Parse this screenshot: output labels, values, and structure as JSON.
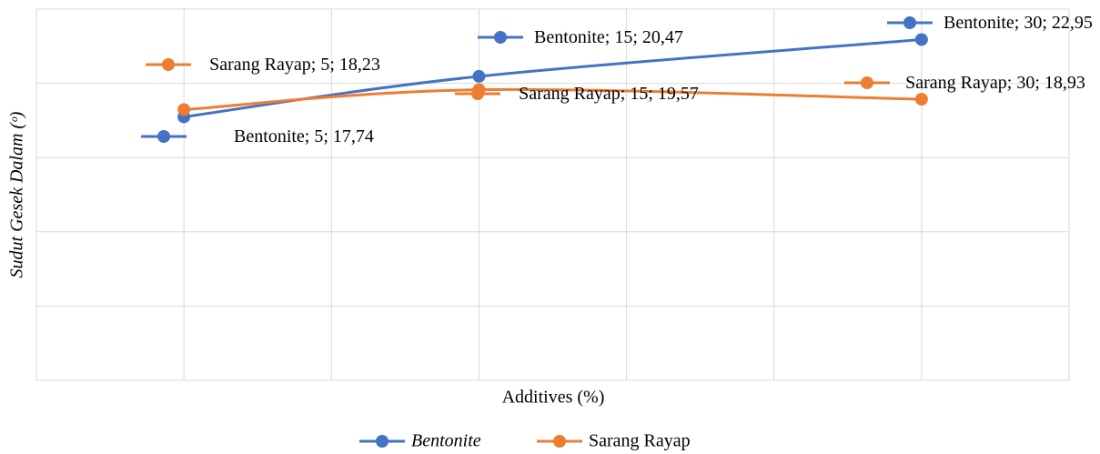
{
  "chart_data": {
    "type": "line",
    "x_label": "Additives (%)",
    "y_label": "Sudut Gesek Dalam (ᵒ)",
    "x": [
      5,
      15,
      30
    ],
    "xlim": [
      0,
      35
    ],
    "xticks": [
      0,
      5,
      10,
      15,
      20,
      25,
      30,
      35
    ],
    "ylim": [
      0,
      25
    ],
    "yticks": [
      0,
      5,
      10,
      15,
      20,
      25
    ],
    "grid": true,
    "smooth": true,
    "legend": "bottom",
    "series": [
      {
        "name": "Bentonite",
        "color": "#4472c4",
        "values": [
          17.74,
          20.47,
          22.95
        ],
        "value_labels": [
          "Bentonite; 5; 17,74",
          "Bentonite; 15; 20,47",
          "Bentonite; 30; 22,95"
        ]
      },
      {
        "name": "Sarang Rayap",
        "color": "#ed7d31",
        "values": [
          18.23,
          19.57,
          18.93
        ],
        "value_labels": [
          "Sarang Rayap; 5; 18,23",
          "Sarang Rayap; 15; 19,57",
          "Sarang Rayap; 30; 18,93"
        ]
      }
    ]
  }
}
